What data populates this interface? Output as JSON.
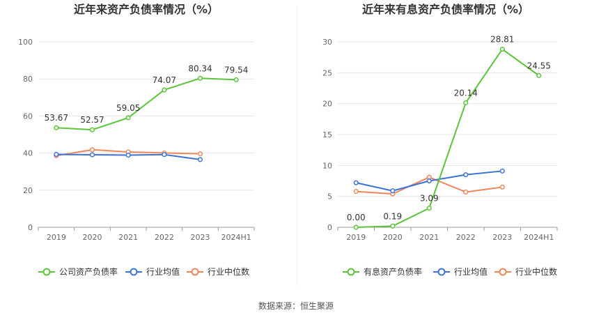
{
  "chart_data": [
    {
      "type": "line",
      "title": "近年来资产负债率情况（%）",
      "categories": [
        "2019",
        "2020",
        "2021",
        "2022",
        "2023",
        "2024H1"
      ],
      "ylim": [
        0,
        100
      ],
      "yticks": [
        "0",
        "20",
        "40",
        "60",
        "80",
        "100"
      ],
      "grid": true,
      "legend_position": "bottom",
      "series": [
        {
          "name": "公司资产负债率",
          "color": "#5ac43a",
          "values": [
            53.67,
            52.57,
            59.05,
            74.07,
            80.34,
            79.54
          ],
          "labels": [
            "53.67",
            "52.57",
            "59.05",
            "74.07",
            "80.34",
            "79.54"
          ]
        },
        {
          "name": "行业均值",
          "color": "#3a72d8",
          "values": [
            39.3,
            39.1,
            38.9,
            39.2,
            36.5,
            null
          ]
        },
        {
          "name": "行业中位数",
          "color": "#f0865a",
          "values": [
            38.6,
            41.8,
            40.6,
            40.1,
            39.6,
            null
          ]
        }
      ]
    },
    {
      "type": "line",
      "title": "近年来有息资产负债率情况（%）",
      "categories": [
        "2019",
        "2020",
        "2021",
        "2022",
        "2023",
        "2024H1"
      ],
      "ylim": [
        0,
        30
      ],
      "yticks": [
        "0",
        "5",
        "10",
        "15",
        "20",
        "25",
        "30"
      ],
      "grid": true,
      "legend_position": "bottom",
      "series": [
        {
          "name": "有息资产负债率",
          "color": "#5ac43a",
          "values": [
            0.0,
            0.19,
            3.09,
            20.14,
            28.81,
            24.55
          ],
          "labels": [
            "0.00",
            "0.19",
            "3.09",
            "20.14",
            "28.81",
            "24.55"
          ]
        },
        {
          "name": "行业均值",
          "color": "#3a72d8",
          "values": [
            7.2,
            5.9,
            7.5,
            8.5,
            9.1,
            null
          ]
        },
        {
          "name": "行业中位数",
          "color": "#f0865a",
          "values": [
            5.8,
            5.4,
            8.1,
            5.7,
            6.5,
            null
          ]
        }
      ]
    }
  ],
  "source_text": "数据来源：恒生聚源"
}
